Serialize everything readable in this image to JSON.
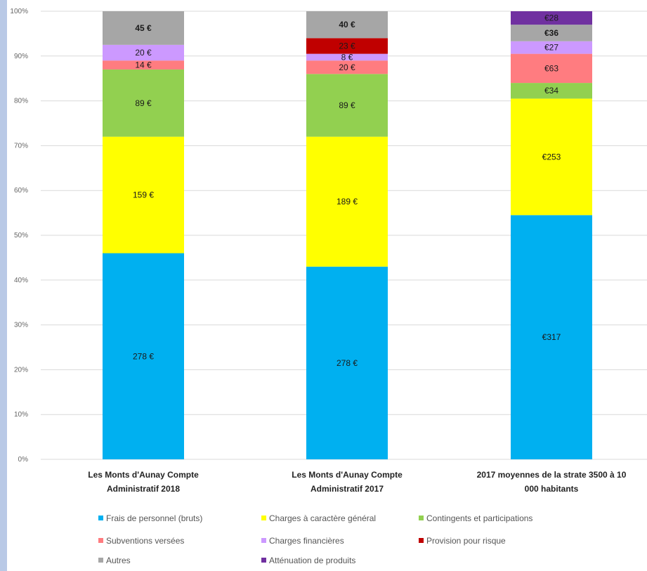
{
  "chart_data": {
    "type": "bar",
    "stacked": true,
    "normalized": true,
    "ylim": [
      0,
      100
    ],
    "y_ticks": [
      "0%",
      "10%",
      "20%",
      "30%",
      "40%",
      "50%",
      "60%",
      "70%",
      "80%",
      "90%",
      "100%"
    ],
    "grid": true,
    "legend_position": "bottom",
    "categories": [
      [
        "Les Monts d'Aunay Compte",
        "Administratif 2018"
      ],
      [
        "Les Monts d'Aunay Compte",
        "Administratif 2017"
      ],
      [
        "2017 moyennes de la strate 3500 à 10",
        "000 habitants"
      ]
    ],
    "series": [
      {
        "name": "Frais de personnel (bruts)",
        "color": "#00b0f0",
        "values": [
          46,
          43,
          54.5
        ],
        "labels": [
          "278 €",
          "278 €",
          "€317"
        ]
      },
      {
        "name": "Charges à caractère général",
        "color": "#ffff00",
        "values": [
          26,
          29,
          26
        ],
        "labels": [
          "159 €",
          "189 €",
          "€253"
        ]
      },
      {
        "name": "Contingents et participations",
        "color": "#92d050",
        "values": [
          15,
          14,
          3.5
        ],
        "labels": [
          "89 €",
          "89 €",
          "€34"
        ]
      },
      {
        "name": "Subventions versées",
        "color": "#ff7c80",
        "values": [
          2,
          3,
          6.5
        ],
        "labels": [
          "14 €",
          "20 €",
          "€63"
        ]
      },
      {
        "name": "Charges financières",
        "color": "#cc99ff",
        "values": [
          3.5,
          1.5,
          2.8
        ],
        "labels": [
          "20 €",
          "8 €",
          "€27"
        ]
      },
      {
        "name": "Provision pour risque",
        "color": "#c00000",
        "values": [
          0,
          3.5,
          0
        ],
        "labels": [
          "",
          "23 €",
          ""
        ]
      },
      {
        "name": "Autres",
        "color": "#a6a6a6",
        "values": [
          7.5,
          6,
          3.7
        ],
        "labels": [
          "45 €",
          "40 €",
          "€36"
        ]
      },
      {
        "name": "Atténuation de produits",
        "color": "#7030a0",
        "values": [
          0,
          0,
          3
        ],
        "labels": [
          "",
          "",
          "€28"
        ]
      }
    ]
  }
}
